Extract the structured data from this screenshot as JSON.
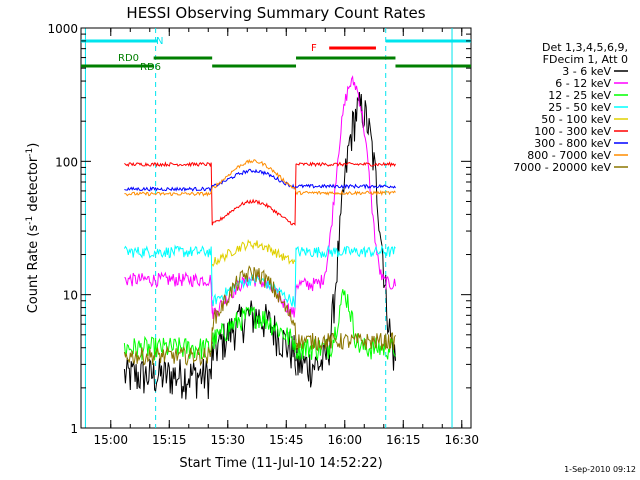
{
  "chart_data": {
    "type": "line",
    "title": "HESSI Observing Summary Count Rates",
    "xlabel": "Start Time (11-Jul-10 14:52:22)",
    "ylabel": "Count Rate (s^-1 detector^-1)",
    "ylabel_main": "Count Rate (s",
    "ylabel_sup1": "-1",
    "ylabel_mid": " detector",
    "ylabel_sup2": "-1",
    "ylabel_end": ")",
    "y_scale": "log",
    "ylim": [
      1,
      1000
    ],
    "xlim": [
      "14:52:22",
      "16:32:22"
    ],
    "x_ticks": [
      "15:00",
      "15:15",
      "15:30",
      "15:45",
      "16:00",
      "16:15",
      "16:30"
    ],
    "y_ticks": [
      "1",
      "10",
      "100",
      "1000"
    ],
    "legend_header": [
      "Det 1,3,4,5,6,9,",
      "FDecim 1, Att 0"
    ],
    "legend_position": "right",
    "series": [
      {
        "name": "3 - 6 keV",
        "color": "#000000"
      },
      {
        "name": "6 - 12 keV",
        "color": "#ff00ff"
      },
      {
        "name": "12 - 25 keV",
        "color": "#00ff00"
      },
      {
        "name": "25 - 50 keV",
        "color": "#00ffff"
      },
      {
        "name": "50 - 100 keV",
        "color": "#e0d000"
      },
      {
        "name": "100 - 300 keV",
        "color": "#ff0000"
      },
      {
        "name": "300 - 800 keV",
        "color": "#0000ff"
      },
      {
        "name": "800 - 7000 keV",
        "color": "#ff8c00"
      },
      {
        "name": "7000 - 20000 keV",
        "color": "#8b7500"
      }
    ],
    "flags": [
      {
        "label": "N",
        "color": "#00e5ee"
      },
      {
        "label": "RD0",
        "color": "#007f00"
      },
      {
        "label": "RD6",
        "color": "#007f00"
      },
      {
        "label": "F",
        "color": "#ff0000"
      }
    ],
    "flag_intervals": {
      "N": [
        [
          "14:52:22",
          "15:12:00"
        ],
        [
          "16:10:30",
          "16:32:22"
        ]
      ],
      "RD0": [
        [
          "14:52:22",
          "15:11:00"
        ],
        [
          "15:11:00",
          "15:26:00"
        ],
        [
          "15:26:00",
          "15:47:30"
        ],
        [
          "15:47:30",
          "16:13:00"
        ],
        [
          "16:13:00",
          "16:32:22"
        ]
      ],
      "F": [
        [
          "15:56:00",
          "16:08:00"
        ]
      ]
    },
    "night_markers": [
      "15:11:30",
      "16:10:30"
    ],
    "saa_markers": [
      "14:53:30",
      "16:27:30"
    ],
    "data_gaps": [
      [
        "14:52:22",
        "15:03:30"
      ],
      [
        "16:13:00",
        "16:32:22"
      ]
    ]
  },
  "footer": {
    "date_stamp": "1-Sep-2010 09:12"
  },
  "colors": {
    "axes": "#000000",
    "background": "#ffffff"
  }
}
